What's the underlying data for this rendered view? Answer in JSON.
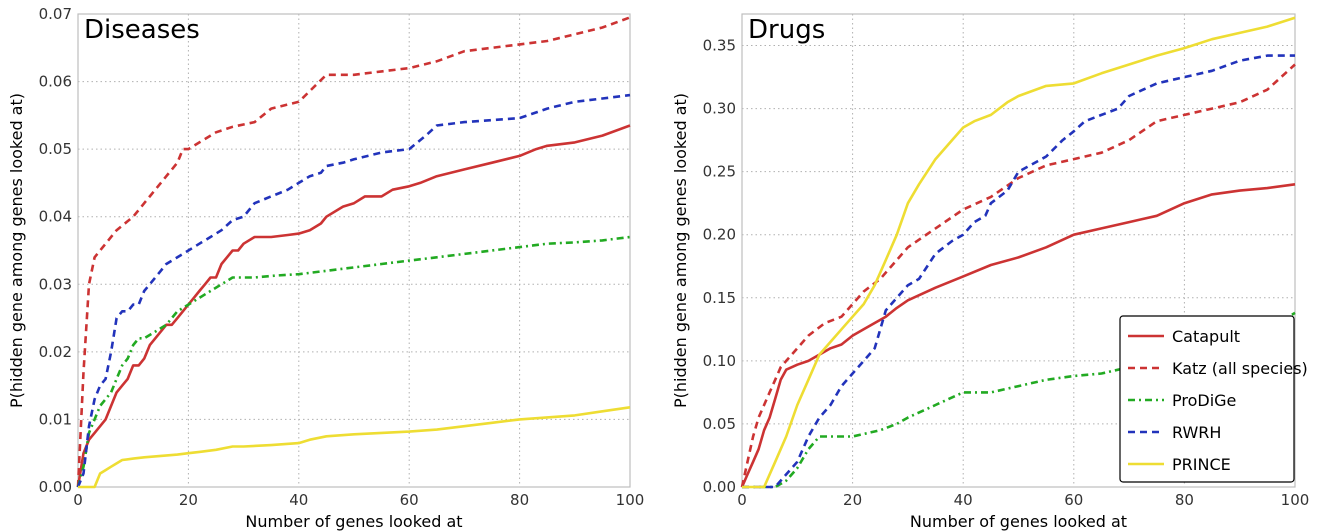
{
  "chart_data": [
    {
      "type": "line",
      "title": "Diseases",
      "xlabel": "Number of genes looked at",
      "ylabel": "P(hidden gene among genes looked at)",
      "xlim": [
        0,
        100
      ],
      "ylim": [
        0,
        0.07
      ],
      "xticks": [
        "0",
        "20",
        "40",
        "60",
        "80",
        "100"
      ],
      "yticks": [
        "0.00",
        "0.01",
        "0.02",
        "0.03",
        "0.04",
        "0.05",
        "0.06",
        "0.07"
      ],
      "grid": true,
      "series": [
        {
          "name": "Catapult",
          "color": "#cc3333",
          "dash": "solid",
          "x": [
            0,
            1,
            2,
            3,
            4,
            5,
            6,
            7,
            8,
            9,
            10,
            11,
            12,
            13,
            14,
            15,
            16,
            17,
            18,
            19,
            20,
            21,
            22,
            23,
            24,
            25,
            26,
            27,
            28,
            29,
            30,
            32,
            35,
            38,
            40,
            42,
            44,
            45,
            48,
            50,
            52,
            55,
            57,
            60,
            62,
            65,
            70,
            75,
            80,
            83,
            85,
            90,
            95,
            100
          ],
          "y": [
            0,
            0.005,
            0.007,
            0.008,
            0.009,
            0.01,
            0.012,
            0.014,
            0.015,
            0.016,
            0.018,
            0.018,
            0.019,
            0.021,
            0.022,
            0.023,
            0.024,
            0.024,
            0.025,
            0.026,
            0.027,
            0.028,
            0.029,
            0.03,
            0.031,
            0.031,
            0.033,
            0.034,
            0.035,
            0.035,
            0.036,
            0.037,
            0.037,
            0.0373,
            0.0375,
            0.038,
            0.039,
            0.04,
            0.0415,
            0.042,
            0.043,
            0.043,
            0.044,
            0.0445,
            0.045,
            0.046,
            0.047,
            0.048,
            0.049,
            0.05,
            0.0505,
            0.051,
            0.052,
            0.0535
          ]
        },
        {
          "name": "Katz (all species)",
          "color": "#cc3333",
          "dash": "dashed",
          "x": [
            0,
            1,
            2,
            3,
            5,
            7,
            10,
            12,
            14,
            16,
            18,
            19,
            20,
            22,
            25,
            28,
            32,
            35,
            40,
            45,
            50,
            55,
            60,
            65,
            70,
            75,
            80,
            85,
            90,
            95,
            100
          ],
          "y": [
            0,
            0.017,
            0.03,
            0.034,
            0.036,
            0.038,
            0.04,
            0.042,
            0.044,
            0.046,
            0.048,
            0.05,
            0.05,
            0.051,
            0.0525,
            0.0533,
            0.054,
            0.056,
            0.057,
            0.061,
            0.061,
            0.0615,
            0.062,
            0.063,
            0.0645,
            0.065,
            0.0655,
            0.066,
            0.067,
            0.068,
            0.0695
          ]
        },
        {
          "name": "ProDiGe",
          "color": "#22aa22",
          "dash": "dashdot",
          "x": [
            0,
            1,
            2,
            3,
            4,
            5,
            6,
            7,
            8,
            9,
            10,
            11,
            12,
            14,
            16,
            18,
            20,
            22,
            24,
            26,
            28,
            32,
            36,
            40,
            45,
            50,
            55,
            60,
            65,
            70,
            75,
            80,
            85,
            90,
            95,
            100
          ],
          "y": [
            0,
            0.003,
            0.008,
            0.01,
            0.012,
            0.013,
            0.014,
            0.016,
            0.018,
            0.019,
            0.021,
            0.022,
            0.022,
            0.023,
            0.024,
            0.026,
            0.027,
            0.028,
            0.029,
            0.03,
            0.031,
            0.031,
            0.0313,
            0.0315,
            0.032,
            0.0325,
            0.033,
            0.0335,
            0.034,
            0.0345,
            0.035,
            0.0355,
            0.036,
            0.0362,
            0.0365,
            0.037
          ]
        },
        {
          "name": "RWRH",
          "color": "#2233bb",
          "dash": "dashed",
          "x": [
            0,
            1,
            2,
            3,
            4,
            5,
            6,
            7,
            8,
            9,
            10,
            11,
            12,
            13,
            14,
            15,
            16,
            18,
            20,
            22,
            24,
            26,
            28,
            30,
            32,
            35,
            38,
            40,
            42,
            44,
            45,
            48,
            50,
            55,
            60,
            63,
            65,
            70,
            75,
            80,
            85,
            90,
            95,
            100
          ],
          "y": [
            0,
            0.002,
            0.009,
            0.013,
            0.015,
            0.016,
            0.02,
            0.025,
            0.026,
            0.026,
            0.027,
            0.027,
            0.029,
            0.03,
            0.031,
            0.032,
            0.033,
            0.034,
            0.035,
            0.036,
            0.037,
            0.038,
            0.0395,
            0.04,
            0.042,
            0.043,
            0.044,
            0.045,
            0.046,
            0.0465,
            0.0475,
            0.048,
            0.0485,
            0.0495,
            0.05,
            0.052,
            0.0535,
            0.054,
            0.0543,
            0.0546,
            0.056,
            0.057,
            0.0575,
            0.058
          ]
        },
        {
          "name": "PRINCE",
          "color": "#eedd33",
          "dash": "solid",
          "x": [
            0,
            1,
            2,
            3,
            4,
            5,
            6,
            7,
            8,
            10,
            12,
            15,
            18,
            20,
            22,
            25,
            28,
            30,
            35,
            40,
            42,
            45,
            50,
            55,
            60,
            65,
            70,
            75,
            80,
            85,
            90,
            95,
            100
          ],
          "y": [
            0,
            0,
            0,
            0,
            0.002,
            0.0025,
            0.003,
            0.0035,
            0.004,
            0.0042,
            0.0044,
            0.0046,
            0.0048,
            0.005,
            0.0052,
            0.0055,
            0.006,
            0.006,
            0.0062,
            0.0065,
            0.007,
            0.0075,
            0.0078,
            0.008,
            0.0082,
            0.0085,
            0.009,
            0.0095,
            0.01,
            0.0103,
            0.0106,
            0.0112,
            0.0118
          ]
        }
      ]
    },
    {
      "type": "line",
      "title": "Drugs",
      "xlabel": "Number of genes looked at",
      "ylabel": "P(hidden gene among genes looked at)",
      "xlim": [
        0,
        100
      ],
      "ylim": [
        0,
        0.375
      ],
      "xticks": [
        "0",
        "20",
        "40",
        "60",
        "80",
        "100"
      ],
      "yticks": [
        "0.00",
        "0.05",
        "0.10",
        "0.15",
        "0.20",
        "0.25",
        "0.30",
        "0.35"
      ],
      "grid": true,
      "legend": "bottom-right",
      "series": [
        {
          "name": "Catapult",
          "color": "#cc3333",
          "dash": "solid",
          "x": [
            0,
            1,
            2,
            3,
            4,
            5,
            6,
            7,
            8,
            10,
            12,
            14,
            16,
            18,
            20,
            22,
            24,
            26,
            28,
            30,
            35,
            40,
            45,
            50,
            55,
            60,
            65,
            70,
            75,
            80,
            85,
            90,
            95,
            100
          ],
          "y": [
            0,
            0.01,
            0.02,
            0.03,
            0.045,
            0.055,
            0.07,
            0.085,
            0.093,
            0.097,
            0.1,
            0.105,
            0.11,
            0.113,
            0.12,
            0.125,
            0.13,
            0.135,
            0.142,
            0.148,
            0.158,
            0.167,
            0.176,
            0.182,
            0.19,
            0.2,
            0.205,
            0.21,
            0.215,
            0.225,
            0.232,
            0.235,
            0.237,
            0.24
          ]
        },
        {
          "name": "Katz (all species)",
          "color": "#cc3333",
          "dash": "dashed",
          "x": [
            0,
            1,
            2,
            3,
            4,
            5,
            6,
            7,
            8,
            10,
            12,
            15,
            18,
            20,
            22,
            25,
            28,
            30,
            35,
            40,
            45,
            50,
            55,
            60,
            65,
            70,
            75,
            80,
            85,
            90,
            95,
            100
          ],
          "y": [
            0,
            0.02,
            0.04,
            0.055,
            0.065,
            0.075,
            0.085,
            0.095,
            0.1,
            0.11,
            0.12,
            0.13,
            0.135,
            0.145,
            0.155,
            0.165,
            0.18,
            0.19,
            0.205,
            0.22,
            0.23,
            0.245,
            0.255,
            0.26,
            0.265,
            0.275,
            0.29,
            0.295,
            0.3,
            0.305,
            0.315,
            0.335
          ]
        },
        {
          "name": "ProDiGe",
          "color": "#22aa22",
          "dash": "dashdot",
          "x": [
            0,
            2,
            4,
            6,
            8,
            10,
            12,
            14,
            16,
            18,
            20,
            25,
            28,
            30,
            35,
            40,
            45,
            50,
            55,
            60,
            65,
            70,
            75,
            80,
            85,
            90,
            95,
            100
          ],
          "y": [
            0,
            0,
            0,
            0,
            0.005,
            0.015,
            0.03,
            0.04,
            0.04,
            0.04,
            0.04,
            0.045,
            0.05,
            0.055,
            0.065,
            0.075,
            0.075,
            0.08,
            0.085,
            0.088,
            0.09,
            0.095,
            0.1,
            0.105,
            0.11,
            0.12,
            0.125,
            0.138
          ]
        },
        {
          "name": "RWRH",
          "color": "#2233bb",
          "dash": "dashed",
          "x": [
            0,
            2,
            4,
            6,
            8,
            10,
            12,
            14,
            16,
            18,
            20,
            22,
            24,
            26,
            28,
            30,
            32,
            35,
            38,
            40,
            42,
            44,
            45,
            48,
            50,
            55,
            58,
            60,
            62,
            65,
            68,
            70,
            75,
            80,
            85,
            90,
            95,
            100
          ],
          "y": [
            0,
            0,
            0,
            0,
            0.01,
            0.02,
            0.04,
            0.055,
            0.065,
            0.08,
            0.09,
            0.1,
            0.11,
            0.14,
            0.15,
            0.16,
            0.165,
            0.185,
            0.195,
            0.2,
            0.21,
            0.215,
            0.225,
            0.235,
            0.25,
            0.262,
            0.275,
            0.282,
            0.29,
            0.295,
            0.3,
            0.31,
            0.32,
            0.325,
            0.33,
            0.338,
            0.342,
            0.342
          ]
        },
        {
          "name": "PRINCE",
          "color": "#eedd33",
          "dash": "solid",
          "x": [
            0,
            2,
            4,
            6,
            8,
            10,
            12,
            14,
            16,
            18,
            20,
            22,
            24,
            26,
            28,
            30,
            32,
            35,
            38,
            40,
            42,
            45,
            48,
            50,
            55,
            60,
            65,
            70,
            75,
            80,
            85,
            90,
            95,
            100
          ],
          "y": [
            0,
            0,
            0,
            0.02,
            0.04,
            0.065,
            0.085,
            0.105,
            0.115,
            0.125,
            0.135,
            0.145,
            0.16,
            0.18,
            0.2,
            0.225,
            0.24,
            0.26,
            0.275,
            0.285,
            0.29,
            0.295,
            0.305,
            0.31,
            0.318,
            0.32,
            0.328,
            0.335,
            0.342,
            0.348,
            0.355,
            0.36,
            0.365,
            0.372
          ]
        }
      ]
    }
  ]
}
